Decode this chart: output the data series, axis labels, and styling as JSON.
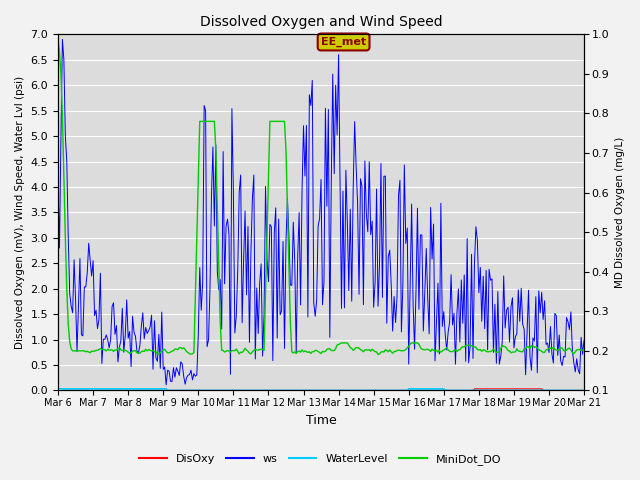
{
  "title": "Dissolved Oxygen and Wind Speed",
  "ylabel_left": "Dissolved Oxygen (mV), Wind Speed, Water Lvl (psi)",
  "ylabel_right": "MD Dissolved Oxygen (mg/L)",
  "xlabel": "Time",
  "ylim_left": [
    0.0,
    7.0
  ],
  "ylim_right": [
    0.1,
    1.0
  ],
  "annotation_text": "EE_met",
  "background_color": "#dcdcdc",
  "grid_color": "#ffffff",
  "colors": {
    "DisOxy": "#ff0000",
    "ws": "#0000ff",
    "WaterLevel": "#00ccff",
    "MiniDot_DO": "#00cc00"
  },
  "x_tick_labels": [
    "Mar 6",
    "Mar 7",
    "Mar 8",
    "Mar 9",
    "Mar 10",
    "Mar 11",
    "Mar 12",
    "Mar 13",
    "Mar 14",
    "Mar 15",
    "Mar 16",
    "Mar 17",
    "Mar 18",
    "Mar 19",
    "Mar 20",
    "Mar 21"
  ],
  "x_tick_positions": [
    0,
    24,
    48,
    72,
    96,
    120,
    144,
    168,
    192,
    216,
    240,
    264,
    288,
    312,
    336,
    360
  ],
  "total_hours": 360,
  "yticks_left": [
    0.0,
    0.5,
    1.0,
    1.5,
    2.0,
    2.5,
    3.0,
    3.5,
    4.0,
    4.5,
    5.0,
    5.5,
    6.0,
    6.5,
    7.0
  ],
  "yticks_right": [
    0.1,
    0.2,
    0.3,
    0.4,
    0.5,
    0.6,
    0.7,
    0.8,
    0.9,
    1.0
  ]
}
